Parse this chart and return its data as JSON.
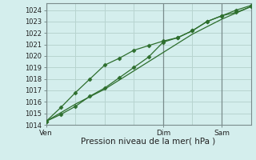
{
  "xlabel": "Pression niveau de la mer( hPa )",
  "background_color": "#d4eeed",
  "grid_color": "#b8d4d0",
  "line_color": "#2d6e2d",
  "ylim": [
    1014,
    1024.6
  ],
  "yticks": [
    1014,
    1015,
    1016,
    1017,
    1018,
    1019,
    1020,
    1021,
    1022,
    1023,
    1024
  ],
  "xlim": [
    0,
    14
  ],
  "xtick_labels": [
    "Ven",
    "Dim",
    "Sam"
  ],
  "xtick_positions": [
    0,
    8,
    12
  ],
  "vlines": [
    0,
    8,
    12
  ],
  "series1_x": [
    0,
    1,
    2,
    3,
    4,
    5,
    6,
    7,
    8,
    9,
    10,
    11,
    12,
    13,
    14
  ],
  "series1_y": [
    1014.3,
    1014.9,
    1015.6,
    1016.5,
    1017.2,
    1018.1,
    1019.0,
    1019.9,
    1021.2,
    1021.6,
    1022.2,
    1023.0,
    1023.5,
    1023.8,
    1024.3
  ],
  "series2_x": [
    0,
    1,
    2,
    3,
    4,
    5,
    6,
    7,
    8,
    9,
    10,
    11,
    12,
    13,
    14
  ],
  "series2_y": [
    1014.3,
    1015.5,
    1016.8,
    1018.0,
    1019.2,
    1019.8,
    1020.5,
    1020.9,
    1021.3,
    1021.6,
    1022.2,
    1023.0,
    1023.5,
    1024.0,
    1024.4
  ],
  "series3_x": [
    0,
    2,
    4,
    6,
    8,
    10,
    12,
    14
  ],
  "series3_y": [
    1014.3,
    1015.8,
    1017.1,
    1018.7,
    1020.3,
    1021.9,
    1023.2,
    1024.3
  ]
}
